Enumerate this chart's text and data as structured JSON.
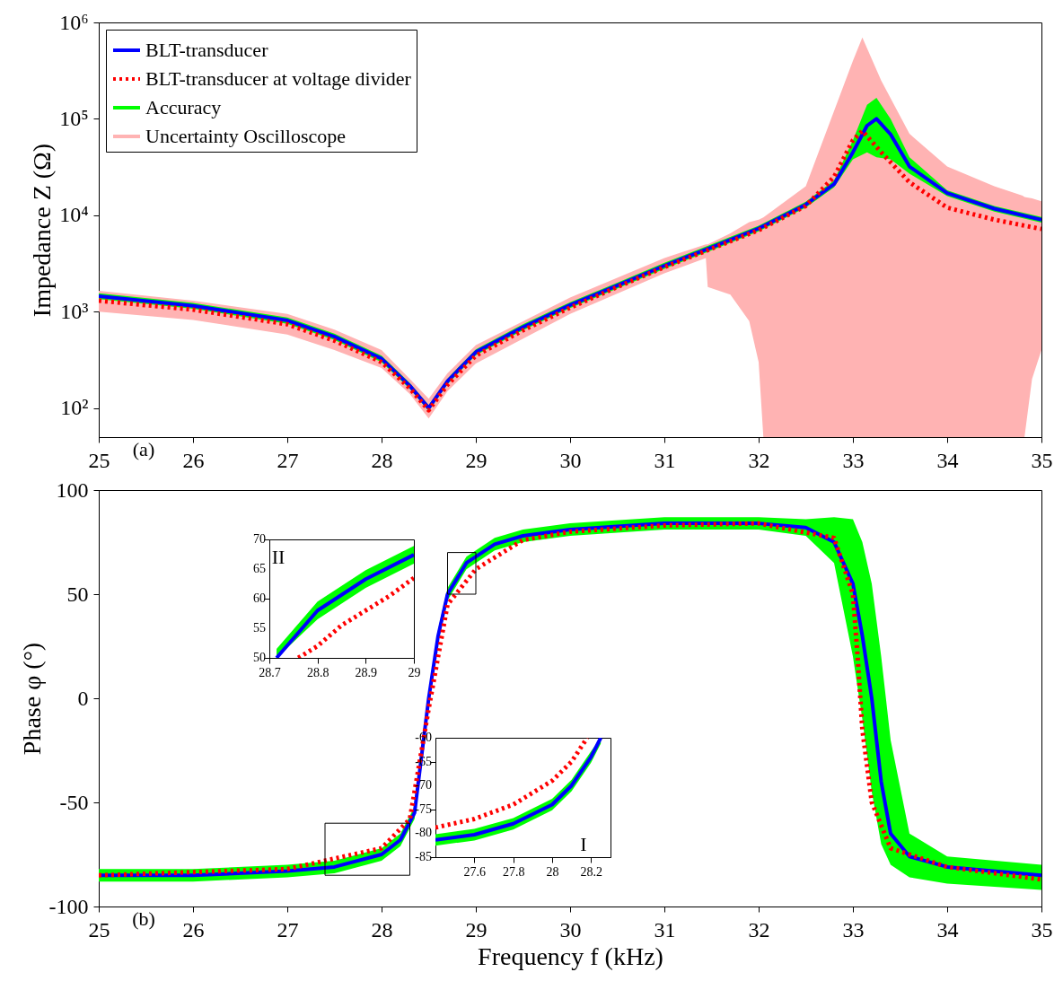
{
  "chart_data": [
    {
      "type": "line",
      "ylabel": "Impedance Z (Ω)",
      "log": "y",
      "xlim": [
        25,
        35
      ],
      "ylim": [
        50,
        1000000
      ],
      "xticks": [
        25,
        26,
        27,
        28,
        29,
        30,
        31,
        32,
        33,
        34,
        35
      ],
      "yticks": [
        {
          "value": 100,
          "label": "10²"
        },
        {
          "value": 1000,
          "label": "10³"
        },
        {
          "value": 10000,
          "label": "10⁴"
        },
        {
          "value": 100000,
          "label": "10⁵"
        },
        {
          "value": 1000000,
          "label": "10⁶"
        }
      ],
      "legend": "top left",
      "annotations": [
        "(a)"
      ],
      "series": [
        {
          "name": "BLT-transducer",
          "color": "#0000ff",
          "line_style": "solid",
          "x": [
            25,
            26,
            27,
            27.5,
            28,
            28.3,
            28.5,
            28.7,
            29,
            29.5,
            30,
            30.5,
            31,
            31.5,
            32,
            32.5,
            32.8,
            33,
            33.15,
            33.25,
            33.4,
            33.6,
            34,
            34.5,
            35
          ],
          "values": [
            1450,
            1150,
            810,
            550,
            325,
            170,
            100,
            190,
            380,
            690,
            1170,
            1870,
            3000,
            4650,
            7300,
            12900,
            21000,
            45000,
            85000,
            100000,
            69000,
            32000,
            17000,
            11700,
            9000
          ]
        },
        {
          "name": "BLT-transducer at voltage divider",
          "color": "#ff0000",
          "line_style": "dotted",
          "x": [
            25,
            26,
            27,
            27.5,
            28,
            28.3,
            28.5,
            28.7,
            29,
            29.5,
            30,
            30.5,
            31,
            31.5,
            32,
            32.5,
            32.8,
            33,
            33.1,
            33.3,
            33.6,
            34,
            34.5,
            35
          ],
          "values": [
            1300,
            1050,
            740,
            500,
            300,
            160,
            95,
            175,
            350,
            640,
            1100,
            1800,
            2900,
            4500,
            7000,
            12500,
            25000,
            60000,
            75000,
            45000,
            22000,
            12000,
            9000,
            7200
          ]
        },
        {
          "name": "Accuracy",
          "color": "#00ff00",
          "type": "area",
          "x": [
            25,
            26,
            27,
            27.5,
            28,
            28.3,
            28.5,
            28.7,
            29,
            29.5,
            30,
            30.5,
            31,
            31.5,
            32,
            32.5,
            32.8,
            33,
            33.15,
            33.25,
            33.4,
            33.6,
            34,
            34.5,
            35
          ],
          "values": [
            null,
            null,
            null,
            null,
            null,
            null,
            null,
            null,
            null,
            null,
            null,
            null,
            null,
            null,
            null,
            null,
            null,
            null,
            null,
            null,
            null,
            null,
            null,
            null,
            null
          ],
          "lower": [
            1350,
            1070,
            750,
            510,
            300,
            158,
            93,
            177,
            353,
            640,
            1090,
            1740,
            2790,
            4320,
            6800,
            12000,
            19500,
            38000,
            45000,
            40000,
            38000,
            27000,
            15800,
            10900,
            8400
          ],
          "upper": [
            1550,
            1230,
            870,
            590,
            350,
            182,
            107,
            203,
            407,
            740,
            1250,
            2000,
            3210,
            4980,
            7800,
            13800,
            23000,
            60000,
            140000,
            165000,
            100000,
            40000,
            18200,
            12500,
            9600
          ]
        },
        {
          "name": "Uncertainty Oscilloscope",
          "color": "#ffb3b3",
          "type": "area",
          "x": [
            25,
            26,
            27,
            27.5,
            28,
            28.3,
            28.5,
            28.7,
            29,
            30,
            31,
            31.44,
            31.46,
            31.7,
            31.9,
            32.0,
            32.05,
            32.5,
            33,
            33.1,
            33.3,
            33.6,
            34,
            34.5,
            34.8,
            34.82,
            34.9,
            35
          ],
          "values": [
            null,
            null,
            null,
            null,
            null,
            null,
            null,
            null,
            null,
            null,
            null,
            null,
            null,
            null,
            null,
            null,
            null,
            null,
            null,
            null,
            null,
            null,
            null,
            null,
            null,
            null,
            null,
            null
          ],
          "lower": [
            1000,
            820,
            580,
            400,
            260,
            140,
            78,
            150,
            290,
            950,
            2500,
            3600,
            1800,
            1500,
            800,
            300,
            50,
            50,
            50,
            50,
            50,
            50,
            50,
            50,
            50,
            50,
            200,
            400
          ],
          "upper": [
            1650,
            1300,
            950,
            650,
            400,
            200,
            125,
            230,
            450,
            1400,
            3600,
            5000,
            5000,
            6500,
            8500,
            9000,
            9500,
            20000,
            400000,
            700000,
            250000,
            70000,
            32000,
            20000,
            16000,
            15500,
            15000,
            14000
          ]
        }
      ]
    },
    {
      "type": "line",
      "xlabel": "Frequency f (kHz)",
      "ylabel": "Phase φ (°)",
      "xlim": [
        25,
        35
      ],
      "ylim": [
        -100,
        100
      ],
      "xticks": [
        25,
        26,
        27,
        28,
        29,
        30,
        31,
        32,
        33,
        34,
        35
      ],
      "yticks": [
        -100,
        -50,
        0,
        50,
        100
      ],
      "annotations": [
        "(b)"
      ],
      "series": [
        {
          "color": "#00ff00",
          "type": "area",
          "x": [
            25,
            26,
            27,
            27.5,
            28,
            28.2,
            28.35,
            28.5,
            28.6,
            28.7,
            28.9,
            29.2,
            29.5,
            30,
            31,
            32,
            32.5,
            32.8,
            33,
            33.1,
            33.2,
            33.3,
            33.4,
            33.6,
            34,
            35
          ],
          "values": [
            null,
            null,
            null,
            null,
            null,
            null,
            null,
            null,
            null,
            null,
            null,
            null,
            null,
            null,
            null,
            null,
            null,
            null,
            null,
            null,
            null,
            null,
            null,
            null,
            null,
            null
          ],
          "lower": [
            -88,
            -88,
            -86,
            -84,
            -78,
            -71,
            -58,
            -3,
            27,
            47,
            62,
            71,
            75,
            78,
            81,
            81,
            78,
            65,
            20,
            -10,
            -45,
            -70,
            -80,
            -86,
            -89,
            -92
          ],
          "upper": [
            -82,
            -82,
            -80,
            -78,
            -72,
            -65,
            -52,
            3,
            33,
            53,
            68,
            77,
            81,
            84,
            87,
            87,
            86,
            87,
            86,
            75,
            55,
            20,
            -20,
            -65,
            -76,
            -80
          ]
        },
        {
          "color": "#0000ff",
          "line_style": "solid",
          "x": [
            25,
            26,
            27,
            27.5,
            28,
            28.2,
            28.35,
            28.5,
            28.6,
            28.7,
            28.9,
            29.2,
            29.5,
            30,
            31,
            32,
            32.5,
            32.8,
            33,
            33.1,
            33.2,
            33.3,
            33.4,
            33.6,
            34,
            35
          ],
          "values": [
            -85,
            -85,
            -83,
            -81,
            -75,
            -68,
            -55,
            0,
            30,
            50,
            65,
            74,
            78,
            81,
            84,
            84,
            82,
            75,
            55,
            30,
            0,
            -40,
            -65,
            -76,
            -81,
            -85
          ]
        },
        {
          "color": "#ff0000",
          "line_style": "dotted",
          "x": [
            25,
            27,
            28,
            28.3,
            28.5,
            28.7,
            29,
            29.5,
            30,
            31,
            32,
            32.8,
            33,
            33.05,
            33.1,
            33.2,
            33.4,
            34,
            35
          ],
          "values": [
            -85,
            -82,
            -72,
            -58,
            -5,
            45,
            62,
            76,
            80,
            83,
            84,
            77,
            50,
            20,
            -15,
            -50,
            -72,
            -81,
            -87
          ]
        }
      ]
    },
    {
      "type": "line",
      "xlim": [
        28.7,
        29
      ],
      "ylim": [
        50,
        70
      ],
      "xticks": [
        28.7,
        28.8,
        28.9,
        29
      ],
      "yticks": [
        50,
        55,
        60,
        65,
        70
      ],
      "annotations": [
        "II"
      ],
      "series": [
        {
          "color": "#00ff00",
          "type": "area",
          "x": [
            28.715,
            28.8,
            28.9,
            29
          ],
          "values": [
            null,
            null,
            null,
            null
          ],
          "lower": [
            50,
            56.5,
            61.8,
            65.9
          ],
          "upper": [
            51.5,
            59.5,
            64.8,
            68.9
          ]
        },
        {
          "color": "#0000ff",
          "line_style": "solid",
          "x": [
            28.715,
            28.8,
            28.9,
            29
          ],
          "values": [
            50,
            58,
            63.3,
            67.4
          ]
        },
        {
          "color": "#ff0000",
          "line_style": "dotted",
          "x": [
            28.76,
            28.8,
            28.85,
            28.9,
            28.95,
            29
          ],
          "values": [
            50,
            52,
            55.5,
            58,
            60.5,
            63.5
          ]
        }
      ]
    },
    {
      "type": "line",
      "xlim": [
        27.4,
        28.3
      ],
      "ylim": [
        -85,
        -60
      ],
      "xticks": [
        27.6,
        27.8,
        28,
        28.2
      ],
      "yticks": [
        -85,
        -80,
        -75,
        -70,
        -65,
        -60
      ],
      "annotations": [
        "I"
      ],
      "series": [
        {
          "color": "#00ff00",
          "type": "area",
          "x": [
            27.4,
            27.6,
            27.8,
            28,
            28.1,
            28.2,
            28.25
          ],
          "values": [
            null,
            null,
            null,
            null,
            null,
            null,
            null
          ],
          "lower": [
            -82.6,
            -81.5,
            -79.2,
            -75.2,
            -71.2,
            -65.2,
            -61.2
          ],
          "upper": [
            -80.2,
            -79.1,
            -76.8,
            -72.8,
            -68.8,
            -62.8,
            -60
          ]
        },
        {
          "color": "#0000ff",
          "line_style": "solid",
          "x": [
            27.4,
            27.6,
            27.8,
            28,
            28.1,
            28.2,
            28.25
          ],
          "values": [
            -81.4,
            -80.3,
            -78,
            -74,
            -70,
            -64,
            -60
          ]
        },
        {
          "color": "#ff0000",
          "line_style": "dotted",
          "x": [
            27.4,
            27.6,
            27.8,
            28,
            28.1,
            28.18
          ],
          "values": [
            -78.8,
            -77,
            -74,
            -69,
            -65,
            -60
          ]
        }
      ]
    }
  ]
}
